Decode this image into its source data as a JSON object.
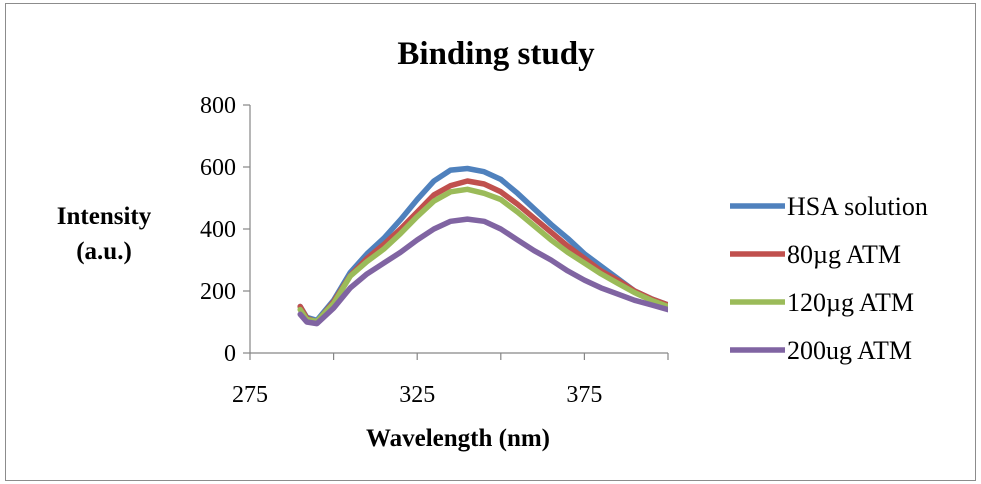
{
  "chart_data": {
    "type": "line",
    "title": "Binding study",
    "xlabel": "Wavelength (nm)",
    "ylabel_lines": [
      "Intensity",
      "(a.u.)"
    ],
    "xlim": [
      275,
      400
    ],
    "ylim": [
      0,
      800
    ],
    "xticks": [
      275,
      325,
      375
    ],
    "yticks": [
      0,
      200,
      400,
      600,
      800
    ],
    "grid": false,
    "legend_position": "right",
    "x": [
      290,
      292,
      295,
      300,
      305,
      310,
      315,
      320,
      325,
      330,
      335,
      340,
      345,
      350,
      355,
      360,
      365,
      370,
      375,
      380,
      385,
      390,
      395,
      400
    ],
    "series": [
      {
        "name": "HSA solution",
        "color": "#4f81bd",
        "values": [
          150,
          115,
          105,
          170,
          260,
          320,
          370,
          430,
          495,
          555,
          590,
          595,
          585,
          560,
          515,
          465,
          415,
          370,
          320,
          280,
          240,
          200,
          175,
          155
        ]
      },
      {
        "name": "80µg ATM",
        "color": "#c0504d",
        "values": [
          150,
          112,
          100,
          165,
          250,
          305,
          350,
          400,
          455,
          510,
          540,
          555,
          545,
          520,
          480,
          435,
          390,
          345,
          305,
          265,
          235,
          200,
          175,
          155
        ]
      },
      {
        "name": "120µg ATM",
        "color": "#9bbb59",
        "values": [
          140,
          108,
          102,
          160,
          248,
          295,
          335,
          385,
          440,
          490,
          520,
          528,
          515,
          495,
          455,
          410,
          365,
          325,
          290,
          255,
          225,
          195,
          170,
          150
        ]
      },
      {
        "name": "200ug ATM",
        "color": "#8064a2",
        "values": [
          125,
          100,
          95,
          145,
          210,
          255,
          290,
          325,
          365,
          400,
          425,
          432,
          425,
          400,
          365,
          330,
          300,
          265,
          235,
          210,
          190,
          170,
          155,
          140
        ]
      }
    ]
  }
}
